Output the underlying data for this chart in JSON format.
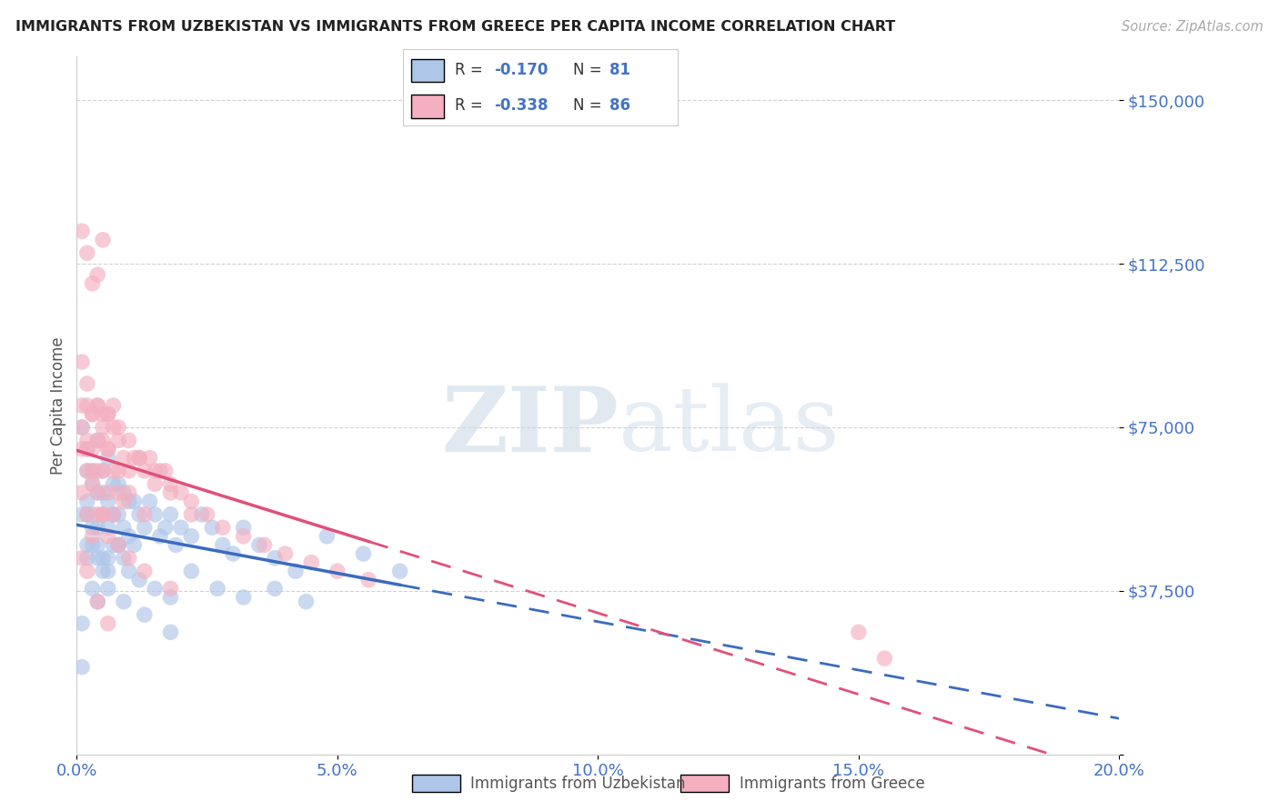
{
  "title": "IMMIGRANTS FROM UZBEKISTAN VS IMMIGRANTS FROM GREECE PER CAPITA INCOME CORRELATION CHART",
  "source": "Source: ZipAtlas.com",
  "ylabel": "Per Capita Income",
  "xlim": [
    0.0,
    0.2
  ],
  "ylim": [
    0,
    160000
  ],
  "yticks": [
    0,
    37500,
    75000,
    112500,
    150000
  ],
  "ytick_labels": [
    "",
    "$37,500",
    "$75,000",
    "$112,500",
    "$150,000"
  ],
  "xticks": [
    0.0,
    0.05,
    0.1,
    0.15,
    0.2
  ],
  "xtick_labels": [
    "0.0%",
    "5.0%",
    "10.0%",
    "15.0%",
    "20.0%"
  ],
  "legend_labels": [
    "Immigrants from Uzbekistan",
    "Immigrants from Greece"
  ],
  "color_uz": "#aec6e8",
  "color_gr": "#f4afc0",
  "line_color_uz": "#3a6bbf",
  "line_color_gr": "#e0507a",
  "watermark_zip": "ZIP",
  "watermark_atlas": "atlas",
  "title_color": "#222222",
  "axis_color": "#4472c4",
  "grid_color": "#cccccc",
  "background_color": "#ffffff",
  "uz_x": [
    0.001,
    0.001,
    0.002,
    0.002,
    0.002,
    0.002,
    0.003,
    0.003,
    0.003,
    0.003,
    0.004,
    0.004,
    0.004,
    0.004,
    0.005,
    0.005,
    0.005,
    0.005,
    0.006,
    0.006,
    0.006,
    0.006,
    0.007,
    0.007,
    0.007,
    0.008,
    0.008,
    0.008,
    0.009,
    0.009,
    0.01,
    0.01,
    0.011,
    0.011,
    0.012,
    0.013,
    0.014,
    0.015,
    0.016,
    0.017,
    0.018,
    0.019,
    0.02,
    0.022,
    0.024,
    0.026,
    0.028,
    0.03,
    0.032,
    0.035,
    0.038,
    0.042,
    0.048,
    0.055,
    0.062,
    0.001,
    0.002,
    0.003,
    0.004,
    0.005,
    0.006,
    0.007,
    0.008,
    0.009,
    0.01,
    0.012,
    0.015,
    0.018,
    0.022,
    0.027,
    0.032,
    0.038,
    0.044,
    0.001,
    0.002,
    0.003,
    0.004,
    0.006,
    0.009,
    0.013,
    0.018
  ],
  "uz_y": [
    75000,
    55000,
    70000,
    65000,
    58000,
    48000,
    65000,
    62000,
    55000,
    48000,
    72000,
    60000,
    52000,
    45000,
    65000,
    60000,
    55000,
    42000,
    68000,
    58000,
    52000,
    45000,
    62000,
    55000,
    48000,
    62000,
    55000,
    48000,
    60000,
    52000,
    58000,
    50000,
    58000,
    48000,
    55000,
    52000,
    58000,
    55000,
    50000,
    52000,
    55000,
    48000,
    52000,
    50000,
    55000,
    52000,
    48000,
    46000,
    52000,
    48000,
    45000,
    42000,
    50000,
    46000,
    42000,
    30000,
    55000,
    52000,
    48000,
    45000,
    42000,
    55000,
    48000,
    45000,
    42000,
    40000,
    38000,
    36000,
    42000,
    38000,
    36000,
    38000,
    35000,
    20000,
    45000,
    38000,
    35000,
    38000,
    35000,
    32000,
    28000
  ],
  "gr_x": [
    0.001,
    0.001,
    0.001,
    0.002,
    0.002,
    0.002,
    0.002,
    0.003,
    0.003,
    0.003,
    0.003,
    0.004,
    0.004,
    0.004,
    0.004,
    0.005,
    0.005,
    0.005,
    0.005,
    0.006,
    0.006,
    0.006,
    0.007,
    0.007,
    0.007,
    0.008,
    0.008,
    0.009,
    0.009,
    0.01,
    0.011,
    0.012,
    0.013,
    0.014,
    0.015,
    0.016,
    0.017,
    0.018,
    0.02,
    0.022,
    0.025,
    0.028,
    0.032,
    0.036,
    0.04,
    0.045,
    0.05,
    0.056,
    0.001,
    0.002,
    0.003,
    0.004,
    0.005,
    0.006,
    0.007,
    0.008,
    0.01,
    0.012,
    0.015,
    0.018,
    0.022,
    0.001,
    0.002,
    0.003,
    0.004,
    0.005,
    0.006,
    0.008,
    0.01,
    0.013,
    0.001,
    0.002,
    0.003,
    0.004,
    0.005,
    0.006,
    0.008,
    0.01,
    0.013,
    0.018,
    0.001,
    0.002,
    0.004,
    0.006,
    0.15,
    0.155
  ],
  "gr_y": [
    80000,
    70000,
    60000,
    80000,
    72000,
    65000,
    55000,
    78000,
    70000,
    62000,
    50000,
    80000,
    72000,
    65000,
    55000,
    78000,
    72000,
    65000,
    55000,
    78000,
    70000,
    60000,
    75000,
    65000,
    55000,
    72000,
    60000,
    68000,
    58000,
    65000,
    68000,
    68000,
    65000,
    68000,
    65000,
    65000,
    65000,
    62000,
    60000,
    58000,
    55000,
    52000,
    50000,
    48000,
    46000,
    44000,
    42000,
    40000,
    120000,
    115000,
    108000,
    110000,
    118000,
    78000,
    80000,
    75000,
    72000,
    68000,
    62000,
    60000,
    55000,
    90000,
    85000,
    78000,
    80000,
    75000,
    70000,
    65000,
    60000,
    55000,
    75000,
    70000,
    65000,
    60000,
    55000,
    50000,
    48000,
    45000,
    42000,
    38000,
    45000,
    42000,
    35000,
    30000,
    28000,
    22000
  ]
}
